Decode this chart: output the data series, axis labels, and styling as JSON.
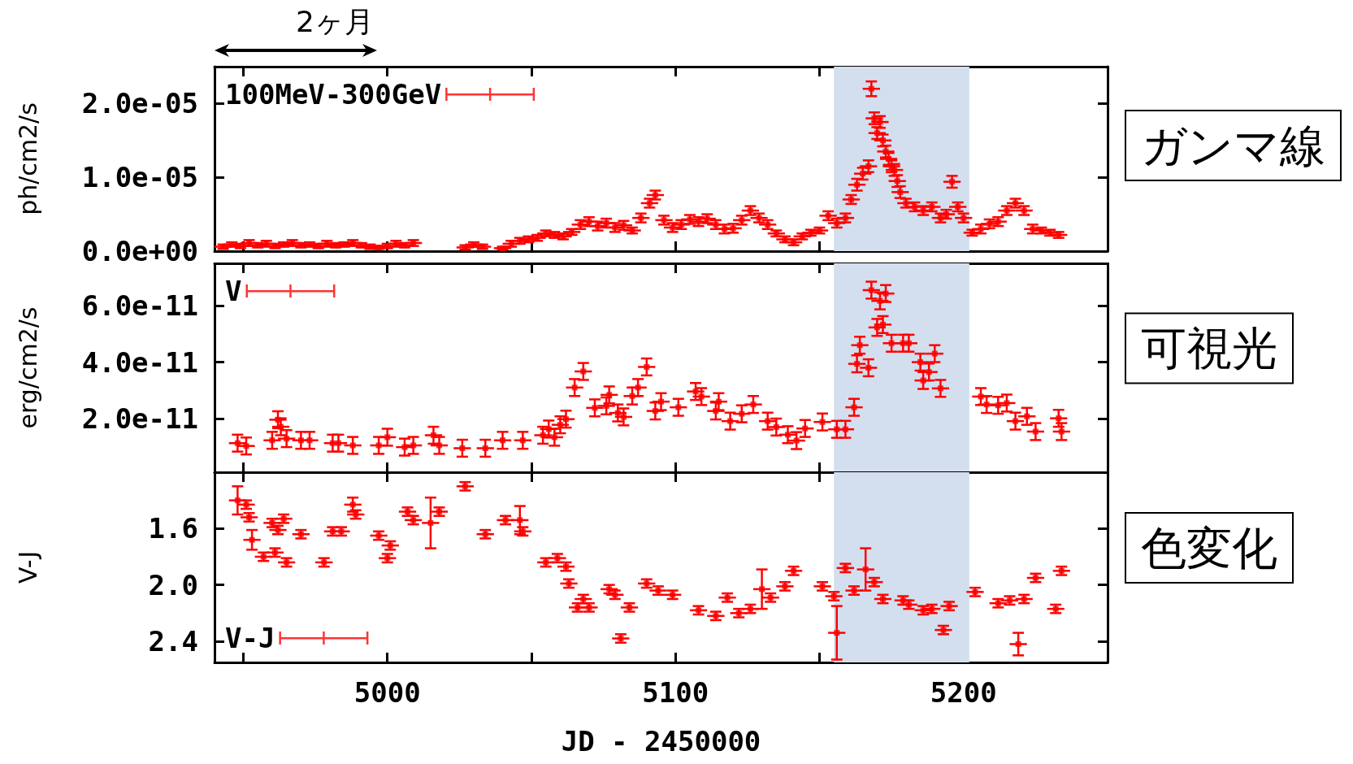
{
  "chart_data": [
    {
      "type": "scatter",
      "ylabel": "ph/cm2/s",
      "legend": "top left",
      "marker": "square",
      "tick_labels": "y",
      "xlim": [
        4940,
        5250
      ],
      "xticks": [
        {
          "value": 4950,
          "label": null
        },
        5000,
        {
          "value": 5050,
          "label": null
        },
        5100,
        {
          "value": 5150,
          "label": null
        },
        5200
      ],
      "ylim": [
        0,
        2.5e-05
      ],
      "yticks": [
        {
          "value": 0,
          "label": "0.0e+00"
        },
        {
          "value": 1e-05,
          "label": "1.0e-05"
        },
        {
          "value": 2e-05,
          "label": "2.0e-05"
        }
      ],
      "bands": [
        {
          "axis": "x",
          "from": 5155,
          "to": 5202,
          "color": "#d3dfee"
        }
      ],
      "annotations": [
        "2ヶ月",
        "ガンマ線"
      ],
      "series": [
        {
          "name": "100MeV-300GeV",
          "color": "#ff0000",
          "x": [
            4943,
            4946,
            4949,
            4952,
            4955,
            4958,
            4961,
            4964,
            4967,
            4970,
            4973,
            4976,
            4979,
            4982,
            4985,
            4988,
            4991,
            4994,
            4997,
            5000,
            5003,
            5006,
            5009,
            5027,
            5030,
            5033,
            5040,
            5043,
            5046,
            5049,
            5052,
            5055,
            5058,
            5061,
            5064,
            5067,
            5070,
            5073,
            5076,
            5079,
            5082,
            5085,
            5088,
            5091,
            5093,
            5096,
            5099,
            5102,
            5105,
            5108,
            5111,
            5114,
            5117,
            5120,
            5123,
            5126,
            5129,
            5132,
            5135,
            5138,
            5141,
            5144,
            5147,
            5150,
            5153,
            5156,
            5159,
            5161,
            5163,
            5165,
            5167,
            5168,
            5169,
            5170,
            5171,
            5172,
            5173,
            5174,
            5175,
            5176,
            5177,
            5178,
            5180,
            5183,
            5186,
            5189,
            5192,
            5194,
            5196,
            5198,
            5200,
            5203,
            5206,
            5209,
            5212,
            5215,
            5218,
            5221,
            5224,
            5227,
            5230,
            5233
          ],
          "values": [
            6e-07,
            9e-07,
            7e-07,
            1.1e-06,
            8e-07,
            1e-06,
            7e-07,
            9e-07,
            1.1e-06,
            8e-07,
            9e-07,
            7e-07,
            1e-06,
            8e-07,
            9e-07,
            1.1e-06,
            8e-07,
            6e-07,
            5e-07,
            7e-07,
            1e-06,
            8e-07,
            1.1e-06,
            5e-07,
            9e-07,
            6e-07,
            4e-07,
            1e-06,
            1.4e-06,
            1.6e-06,
            1.8e-06,
            2.4e-06,
            2.2e-06,
            2e-06,
            2.6e-06,
            3.6e-06,
            4e-06,
            3.4e-06,
            3.8e-06,
            3.2e-06,
            3.5e-06,
            2.8e-06,
            4.5e-06,
            6.5e-06,
            7.6e-06,
            4.2e-06,
            3.2e-06,
            3.6e-06,
            4.3e-06,
            4e-06,
            4.4e-06,
            3.6e-06,
            3e-06,
            3.1e-06,
            4.2e-06,
            5.5e-06,
            4.5e-06,
            3.6e-06,
            2.4e-06,
            1.6e-06,
            1.2e-06,
            2e-06,
            2.5e-06,
            2.8e-06,
            4.8e-06,
            3.8e-06,
            4.5e-06,
            7e-06,
            9e-06,
            1.05e-05,
            1.15e-05,
            2.2e-05,
            1.8e-05,
            1.6e-05,
            1.75e-05,
            1.5e-05,
            1.35e-05,
            1.25e-05,
            1.15e-05,
            1.1e-05,
            9.5e-06,
            8e-06,
            6.5e-06,
            6e-06,
            5.5e-06,
            6e-06,
            4.5e-06,
            5e-06,
            9.4e-06,
            6e-06,
            4.5e-06,
            2.5e-06,
            3e-06,
            3.7e-06,
            4e-06,
            5.5e-06,
            6.5e-06,
            5.5e-06,
            3e-06,
            2.8e-06,
            2.5e-06,
            2.2e-06
          ],
          "errors": [
            3e-07,
            3e-07,
            3e-07,
            4e-07,
            3e-07,
            4e-07,
            3e-07,
            3e-07,
            4e-07,
            3e-07,
            3e-07,
            3e-07,
            4e-07,
            3e-07,
            3e-07,
            4e-07,
            3e-07,
            3e-07,
            2e-07,
            3e-07,
            4e-07,
            3e-07,
            4e-07,
            3e-07,
            3e-07,
            3e-07,
            2e-07,
            4e-07,
            4e-07,
            4e-07,
            4e-07,
            4e-07,
            4e-07,
            4e-07,
            4e-07,
            6e-07,
            6e-07,
            6e-07,
            6e-07,
            6e-07,
            6e-07,
            4e-07,
            6e-07,
            6e-07,
            6e-07,
            6e-07,
            6e-07,
            6e-07,
            6e-07,
            6e-07,
            6e-07,
            6e-07,
            6e-07,
            6e-07,
            6e-07,
            6e-07,
            6e-07,
            6e-07,
            4e-07,
            4e-07,
            4e-07,
            4e-07,
            4e-07,
            4e-07,
            6e-07,
            6e-07,
            6e-07,
            6e-07,
            8e-07,
            8e-07,
            8e-07,
            1e-06,
            8e-07,
            8e-07,
            8e-07,
            8e-07,
            8e-07,
            8e-07,
            8e-07,
            8e-07,
            8e-07,
            8e-07,
            6e-07,
            6e-07,
            6e-07,
            6e-07,
            6e-07,
            6e-07,
            8e-07,
            6e-07,
            6e-07,
            4e-07,
            6e-07,
            6e-07,
            6e-07,
            6e-07,
            6e-07,
            6e-07,
            6e-07,
            4e-07,
            4e-07,
            4e-07
          ],
          "xerrors": [
            3,
            3,
            3,
            3,
            3,
            3,
            3,
            3,
            3,
            3,
            3,
            3,
            3,
            3,
            3,
            3,
            3,
            3,
            3,
            3,
            3,
            3,
            3,
            3,
            3,
            3,
            3,
            3,
            3,
            3,
            3,
            3,
            3,
            3,
            3,
            3,
            3,
            3,
            3,
            3,
            3,
            3,
            3,
            3,
            3,
            3,
            3,
            3,
            3,
            3,
            3,
            3,
            3,
            3,
            3,
            3,
            3,
            3,
            3,
            3,
            3,
            3,
            3,
            3,
            3,
            3,
            3,
            3,
            3,
            3,
            3,
            3,
            3,
            3,
            3,
            3,
            3,
            3,
            3,
            3,
            3,
            3,
            3,
            3,
            3,
            3,
            3,
            3,
            3,
            3,
            3,
            3,
            3,
            3,
            3,
            3,
            3,
            3,
            3,
            3,
            3,
            3
          ]
        }
      ]
    },
    {
      "type": "scatter",
      "ylabel": "erg/cm2/s",
      "legend": "top left",
      "marker": "square",
      "tick_labels": "y",
      "xlim": [
        4940,
        5250
      ],
      "xticks": [
        {
          "value": 4950,
          "label": null
        },
        5000,
        {
          "value": 5050,
          "label": null
        },
        5100,
        {
          "value": 5150,
          "label": null
        },
        5200
      ],
      "ylim": [
        1e-12,
        7.5e-11
      ],
      "yticks": [
        {
          "value": 2e-11,
          "label": "2.0e-11"
        },
        {
          "value": 4e-11,
          "label": "4.0e-11"
        },
        {
          "value": 6e-11,
          "label": "6.0e-11"
        }
      ],
      "bands": [
        {
          "axis": "x",
          "from": 5155,
          "to": 5202,
          "color": "#d3dfee"
        }
      ],
      "annotations": [
        "可視光"
      ],
      "series": [
        {
          "name": "V",
          "color": "#ff0000",
          "x": [
            4948,
            4951,
            4960,
            4962,
            4963,
            4965,
            4970,
            4973,
            4981,
            4983,
            4988,
            4997,
            5000,
            5006,
            5009,
            5016,
            5018,
            5026,
            5034,
            5040,
            5047,
            5054,
            5056,
            5058,
            5060,
            5062,
            5065,
            5068,
            5072,
            5076,
            5077,
            5080,
            5082,
            5085,
            5087,
            5090,
            5093,
            5095,
            5101,
            5107,
            5109,
            5114,
            5115,
            5119,
            5123,
            5127,
            5132,
            5135,
            5139,
            5142,
            5145,
            5151,
            5156,
            5159,
            5162,
            5163,
            5164,
            5167,
            5168,
            5170,
            5171,
            5172,
            5173,
            5175,
            5179,
            5181,
            5185,
            5186,
            5188,
            5190,
            5192,
            5206,
            5208,
            5212,
            5215,
            5218,
            5222,
            5225,
            5233,
            5234
          ],
          "values": [
            1.13e-11,
            1.03e-11,
            1.23e-11,
            1.96e-11,
            1.71e-11,
            1.29e-11,
            1.23e-11,
            1.23e-11,
            1.13e-11,
            1.13e-11,
            1.05e-11,
            1.05e-11,
            1.34e-11,
            9.9e-12,
            1.05e-11,
            1.41e-11,
            1.05e-11,
            9.5e-12,
            9.5e-12,
            1.23e-11,
            1.23e-11,
            1.41e-11,
            1.63e-11,
            1.34e-11,
            1.78e-11,
            1.98e-11,
            3.1e-11,
            3.67e-11,
            2.38e-11,
            2.45e-11,
            2.84e-11,
            2.2e-11,
            2.06e-11,
            2.8e-11,
            3.1e-11,
            3.83e-11,
            2.27e-11,
            2.6e-11,
            2.4e-11,
            2.96e-11,
            2.78e-11,
            2.27e-11,
            2.6e-11,
            1.91e-11,
            2.17e-11,
            2.5e-11,
            1.91e-11,
            1.7e-11,
            1.43e-11,
            1.22e-11,
            1.65e-11,
            1.88e-11,
            1.62e-11,
            1.62e-11,
            2.4e-11,
            3.94e-11,
            4.6e-11,
            3.8e-11,
            6.55e-11,
            5.23e-11,
            6.17e-11,
            5.33e-11,
            6.43e-11,
            4.67e-11,
            4.67e-11,
            4.67e-11,
            4e-11,
            3.35e-11,
            3.65e-11,
            4.3e-11,
            3.07e-11,
            2.78e-11,
            2.5e-11,
            2.47e-11,
            2.55e-11,
            1.91e-11,
            2.08e-11,
            1.54e-11,
            2.01e-11,
            1.54e-11
          ],
          "errors": [
            3e-12,
            3e-12,
            3e-12,
            3e-12,
            3e-12,
            3e-12,
            3e-12,
            3e-12,
            3e-12,
            3e-12,
            3e-12,
            3e-12,
            3e-12,
            3e-12,
            3e-12,
            3e-12,
            3e-12,
            3e-12,
            3e-12,
            3e-12,
            3e-12,
            3e-12,
            3e-12,
            3e-12,
            3e-12,
            3e-12,
            3e-12,
            3e-12,
            3e-12,
            3e-12,
            3e-12,
            3e-12,
            3e-12,
            3e-12,
            3e-12,
            3e-12,
            3e-12,
            3e-12,
            3e-12,
            3e-12,
            3e-12,
            3e-12,
            3e-12,
            3e-12,
            3e-12,
            3e-12,
            3e-12,
            3e-12,
            3e-12,
            3e-12,
            3e-12,
            3e-12,
            3e-12,
            3e-12,
            3e-12,
            3e-12,
            3e-12,
            3e-12,
            3e-12,
            3e-12,
            3e-12,
            3e-12,
            3e-12,
            3e-12,
            3e-12,
            3e-12,
            3e-12,
            3e-12,
            3e-12,
            3e-12,
            3e-12,
            3e-12,
            3e-12,
            3e-12,
            3e-12,
            3e-12,
            3e-12,
            3e-12,
            3e-12,
            3e-12
          ],
          "xerrors": [
            3,
            3,
            3,
            3,
            3,
            3,
            3,
            3,
            3,
            3,
            3,
            3,
            3,
            3,
            3,
            3,
            3,
            3,
            3,
            3,
            3,
            3,
            3,
            3,
            3,
            3,
            3,
            3,
            3,
            3,
            3,
            3,
            3,
            3,
            3,
            3,
            3,
            3,
            3,
            3,
            3,
            3,
            3,
            3,
            3,
            3,
            3,
            3,
            3,
            3,
            3,
            3,
            3,
            3,
            3,
            3,
            3,
            3,
            3,
            3,
            3,
            3,
            3,
            3,
            3,
            3,
            3,
            3,
            3,
            3,
            3,
            3,
            3,
            3,
            3,
            3,
            3,
            3,
            3,
            3
          ]
        }
      ]
    },
    {
      "type": "scatter",
      "ylabel": "V-J",
      "xlabel": "JD - 2450000",
      "legend": "bottom left",
      "marker": "square",
      "xlim": [
        4940,
        5250
      ],
      "xticks": [
        {
          "value": 4950,
          "label": null
        },
        5000,
        {
          "value": 5050,
          "label": null
        },
        5100,
        {
          "value": 5150,
          "label": null
        },
        5200
      ],
      "ylim": [
        2.55,
        1.2
      ],
      "yticks": [
        1.6,
        {
          "value": 2,
          "label": "2.0"
        },
        2.4
      ],
      "bands": [
        {
          "axis": "x",
          "from": 5155,
          "to": 5202,
          "color": "#d3dfee"
        }
      ],
      "annotations": [
        "色変化"
      ],
      "series": [
        {
          "name": "V-J",
          "color": "#ff0000",
          "x": [
            4948,
            4951,
            4952,
            4953,
            4957,
            4960,
            4961,
            4962,
            4964,
            4965,
            4970,
            4978,
            4981,
            4984,
            4988,
            4989,
            4997,
            5000,
            5001,
            5007,
            5009,
            5015,
            5018,
            5027,
            5034,
            5041,
            5046,
            5047,
            5055,
            5059,
            5062,
            5063,
            5066,
            5068,
            5070,
            5077,
            5079,
            5081,
            5084,
            5090,
            5094,
            5099,
            5108,
            5114,
            5118,
            5122,
            5126,
            5130,
            5133,
            5138,
            5141,
            5151,
            5155,
            5156,
            5159,
            5162,
            5166,
            5169,
            5172,
            5179,
            5181,
            5186,
            5189,
            5193,
            5195,
            5204,
            5212,
            5216,
            5219,
            5221,
            5225,
            5232,
            5234
          ],
          "values": [
            1.4,
            1.43,
            1.52,
            1.68,
            1.8,
            1.56,
            1.77,
            1.61,
            1.53,
            1.84,
            1.64,
            1.84,
            1.62,
            1.62,
            1.43,
            1.5,
            1.65,
            1.81,
            1.72,
            1.48,
            1.54,
            1.56,
            1.48,
            1.3,
            1.64,
            1.54,
            1.54,
            1.62,
            1.84,
            1.81,
            1.87,
            1.99,
            2.16,
            2.1,
            2.16,
            2.03,
            2.07,
            2.38,
            2.16,
            1.99,
            2.04,
            2.07,
            2.18,
            2.22,
            2.09,
            2.2,
            2.17,
            2.03,
            2.09,
            2.01,
            1.9,
            2.01,
            2.08,
            2.34,
            1.88,
            2.04,
            1.89,
            1.98,
            2.1,
            2.11,
            2.14,
            2.18,
            2.17,
            2.32,
            2.15,
            2.05,
            2.13,
            2.11,
            2.42,
            2.1,
            1.95,
            2.17,
            1.9
          ],
          "errors": [
            0.1,
            0.03,
            0.03,
            0.07,
            0.03,
            0.03,
            0.03,
            0.03,
            0.03,
            0.03,
            0.03,
            0.03,
            0.03,
            0.03,
            0.05,
            0.03,
            0.03,
            0.03,
            0.03,
            0.03,
            0.03,
            0.18,
            0.03,
            0.03,
            0.03,
            0.03,
            0.1,
            0.03,
            0.03,
            0.03,
            0.03,
            0.03,
            0.03,
            0.03,
            0.03,
            0.03,
            0.03,
            0.03,
            0.03,
            0.03,
            0.03,
            0.03,
            0.03,
            0.03,
            0.03,
            0.03,
            0.03,
            0.14,
            0.03,
            0.03,
            0.03,
            0.03,
            0.03,
            0.19,
            0.03,
            0.03,
            0.15,
            0.03,
            0.03,
            0.03,
            0.03,
            0.03,
            0.03,
            0.03,
            0.03,
            0.03,
            0.03,
            0.03,
            0.08,
            0.03,
            0.03,
            0.03,
            0.03
          ],
          "xerrors": [
            3,
            3,
            3,
            3,
            3,
            3,
            3,
            3,
            3,
            3,
            3,
            3,
            3,
            3,
            3,
            3,
            3,
            3,
            3,
            3,
            3,
            3,
            3,
            3,
            3,
            3,
            3,
            3,
            3,
            3,
            3,
            3,
            3,
            3,
            3,
            3,
            3,
            3,
            3,
            3,
            3,
            3,
            3,
            3,
            3,
            3,
            3,
            3,
            3,
            3,
            3,
            3,
            3,
            3,
            3,
            3,
            3,
            3,
            3,
            3,
            3,
            3,
            3,
            3,
            3,
            3,
            3,
            3,
            3,
            3,
            3,
            3,
            3
          ]
        }
      ]
    }
  ]
}
